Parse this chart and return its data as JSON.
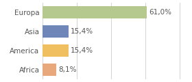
{
  "categories": [
    "Europa",
    "Asia",
    "America",
    "Africa"
  ],
  "values": [
    61.0,
    15.4,
    15.4,
    8.1
  ],
  "labels": [
    "61,0%",
    "15,4%",
    "15,4%",
    "8,1%"
  ],
  "bar_colors": [
    "#b5c98e",
    "#6f86b8",
    "#f0c060",
    "#e8a87c"
  ],
  "background_color": "#ffffff",
  "xlim": [
    0,
    85
  ],
  "grid_color": "#cccccc",
  "label_fontsize": 7.5,
  "category_fontsize": 7.5,
  "bar_height": 0.65
}
